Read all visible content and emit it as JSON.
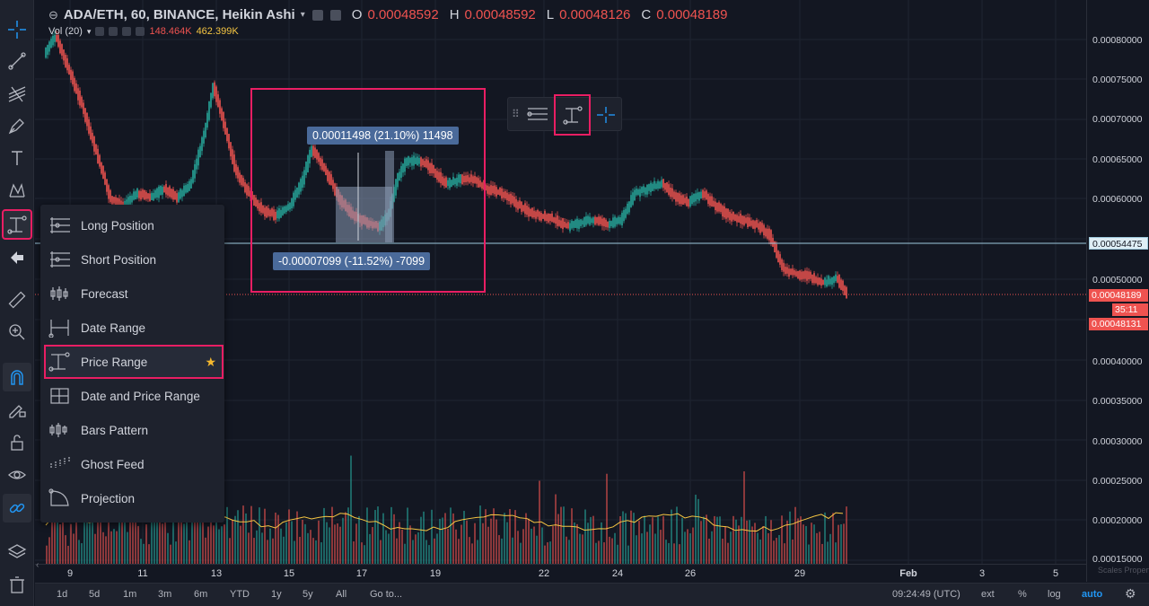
{
  "legend": {
    "symbol": "ADA/ETH, 60, BINANCE, Heikin Ashi",
    "o_label": "O",
    "o_value": "0.00048592",
    "h_label": "H",
    "h_value": "0.00048592",
    "l_label": "L",
    "l_value": "0.00048126",
    "c_label": "C",
    "c_value": "0.00048189"
  },
  "volume_legend": {
    "label": "Vol (20)",
    "v1": "148.464K",
    "v2": "462.399K"
  },
  "price_axis": {
    "labels": [
      "0.00080000",
      "0.00075000",
      "0.00070000",
      "0.00065000",
      "0.00060000",
      "0.00050000",
      "0.00040000",
      "0.00035000",
      "0.00030000",
      "0.00025000",
      "0.00020000",
      "0.00015000"
    ],
    "tag_crosshair": "0.00054475",
    "tag_last": "0.00048189",
    "tag_countdown": "35:11",
    "tag_low": "0.00048131",
    "scales_label": "Scales Properties"
  },
  "time_axis": [
    "9",
    "11",
    "13",
    "15",
    "17",
    "19",
    "22",
    "24",
    "26",
    "29",
    "Feb",
    "3",
    "5"
  ],
  "bottom_bar": {
    "ranges": [
      "1d",
      "5d",
      "1m",
      "3m",
      "6m",
      "YTD",
      "1y",
      "5y",
      "All"
    ],
    "goto": "Go to...",
    "clock": "09:24:49 (UTC)",
    "ext": "ext",
    "pct": "%",
    "log": "log",
    "auto": "auto"
  },
  "range_labels": {
    "up": "0.00011498 (21.10%) 11498",
    "down": "-0.00007099 (-11.52%) -7099"
  },
  "menu": {
    "items": [
      {
        "label": "Long Position",
        "icon": "long-position-icon"
      },
      {
        "label": "Short Position",
        "icon": "short-position-icon"
      },
      {
        "label": "Forecast",
        "icon": "forecast-icon"
      },
      {
        "label": "Date Range",
        "icon": "date-range-icon"
      },
      {
        "label": "Price Range",
        "icon": "price-range-icon"
      },
      {
        "label": "Date and Price Range",
        "icon": "date-price-range-icon"
      },
      {
        "label": "Bars Pattern",
        "icon": "bars-pattern-icon"
      },
      {
        "label": "Ghost Feed",
        "icon": "ghost-feed-icon"
      },
      {
        "label": "Projection",
        "icon": "projection-icon"
      }
    ],
    "selected": "Price Range"
  },
  "colors": {
    "up": "#26a69a",
    "down": "#ef5350",
    "accent": "#2196f3",
    "highlight": "#e91e63"
  }
}
